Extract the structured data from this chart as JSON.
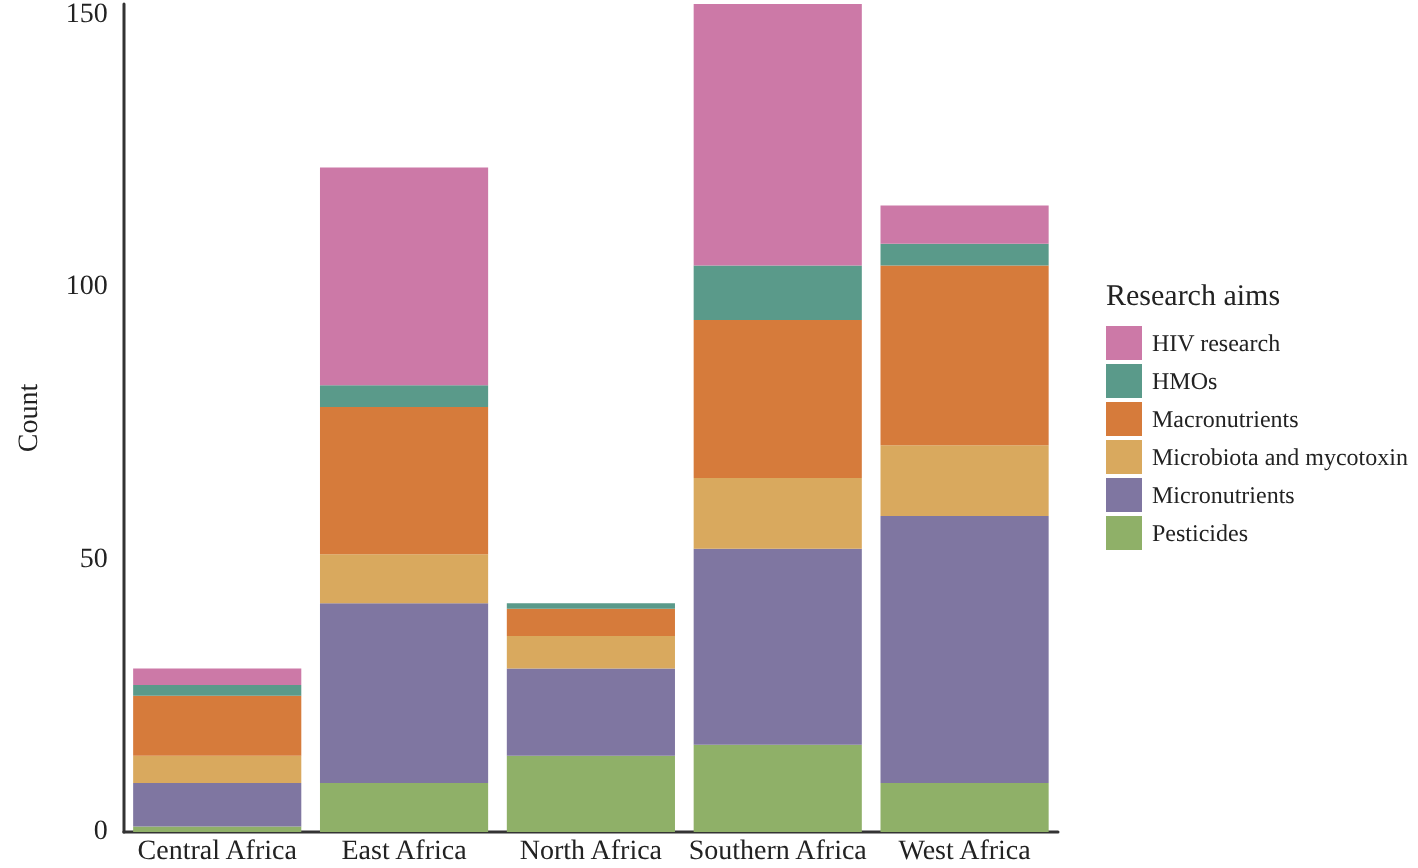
{
  "chart_data": {
    "type": "bar",
    "stacked": true,
    "ylabel": "Count",
    "legend_title": "Research aims",
    "legend": "right",
    "grid": false,
    "categories": [
      "Central Africa",
      "East Africa",
      "North Africa",
      "Southern Africa",
      "West Africa"
    ],
    "ylim": [
      0,
      152
    ],
    "yticks": [
      0,
      50,
      100,
      150
    ],
    "series": [
      {
        "name": "Pesticides",
        "color": "#8fb068",
        "values": [
          1,
          9,
          14,
          16,
          9
        ]
      },
      {
        "name": "Micronutrients",
        "color": "#7f76a1",
        "values": [
          8,
          33,
          16,
          36,
          49
        ]
      },
      {
        "name": "Microbiota and mycotoxin",
        "color": "#d9a95e",
        "values": [
          5,
          9,
          6,
          13,
          13
        ]
      },
      {
        "name": "Macronutrients",
        "color": "#d67b3b",
        "values": [
          11,
          27,
          5,
          29,
          33
        ]
      },
      {
        "name": "HMOs",
        "color": "#5a9a8a",
        "values": [
          2,
          4,
          1,
          10,
          4
        ]
      },
      {
        "name": "HIV research",
        "color": "#cc79a7",
        "values": [
          3,
          40,
          0,
          48,
          7
        ]
      }
    ]
  }
}
